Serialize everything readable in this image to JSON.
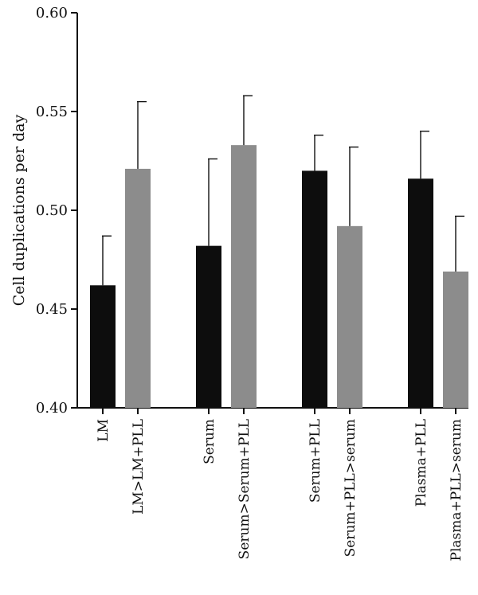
{
  "chart_data": {
    "type": "bar",
    "ylabel": "Cell duplications per day",
    "xlabel": "",
    "ylim": [
      0.4,
      0.6
    ],
    "yticks": [
      "0.40",
      "0.45",
      "0.50",
      "0.55",
      "0.60"
    ],
    "grid": false,
    "colors": {
      "dark": "#0d0d0d",
      "light": "#8c8c8c"
    },
    "groups": [
      {
        "bars": [
          {
            "label": "LM",
            "value": 0.462,
            "error": 0.025,
            "shade": "dark"
          },
          {
            "label": "LM>LM+PLL",
            "value": 0.521,
            "error": 0.034,
            "shade": "light"
          }
        ]
      },
      {
        "bars": [
          {
            "label": "Serum",
            "value": 0.482,
            "error": 0.044,
            "shade": "dark"
          },
          {
            "label": "Serum>Serum+PLL",
            "value": 0.533,
            "error": 0.025,
            "shade": "light"
          }
        ]
      },
      {
        "bars": [
          {
            "label": "Serum+PLL",
            "value": 0.52,
            "error": 0.018,
            "shade": "dark"
          },
          {
            "label": "Serum+PLL>serum",
            "value": 0.492,
            "error": 0.04,
            "shade": "light"
          }
        ]
      },
      {
        "bars": [
          {
            "label": "Plasma+PLL",
            "value": 0.516,
            "error": 0.024,
            "shade": "dark"
          },
          {
            "label": "Plasma+PLL>serum",
            "value": 0.469,
            "error": 0.028,
            "shade": "light"
          }
        ]
      }
    ]
  }
}
